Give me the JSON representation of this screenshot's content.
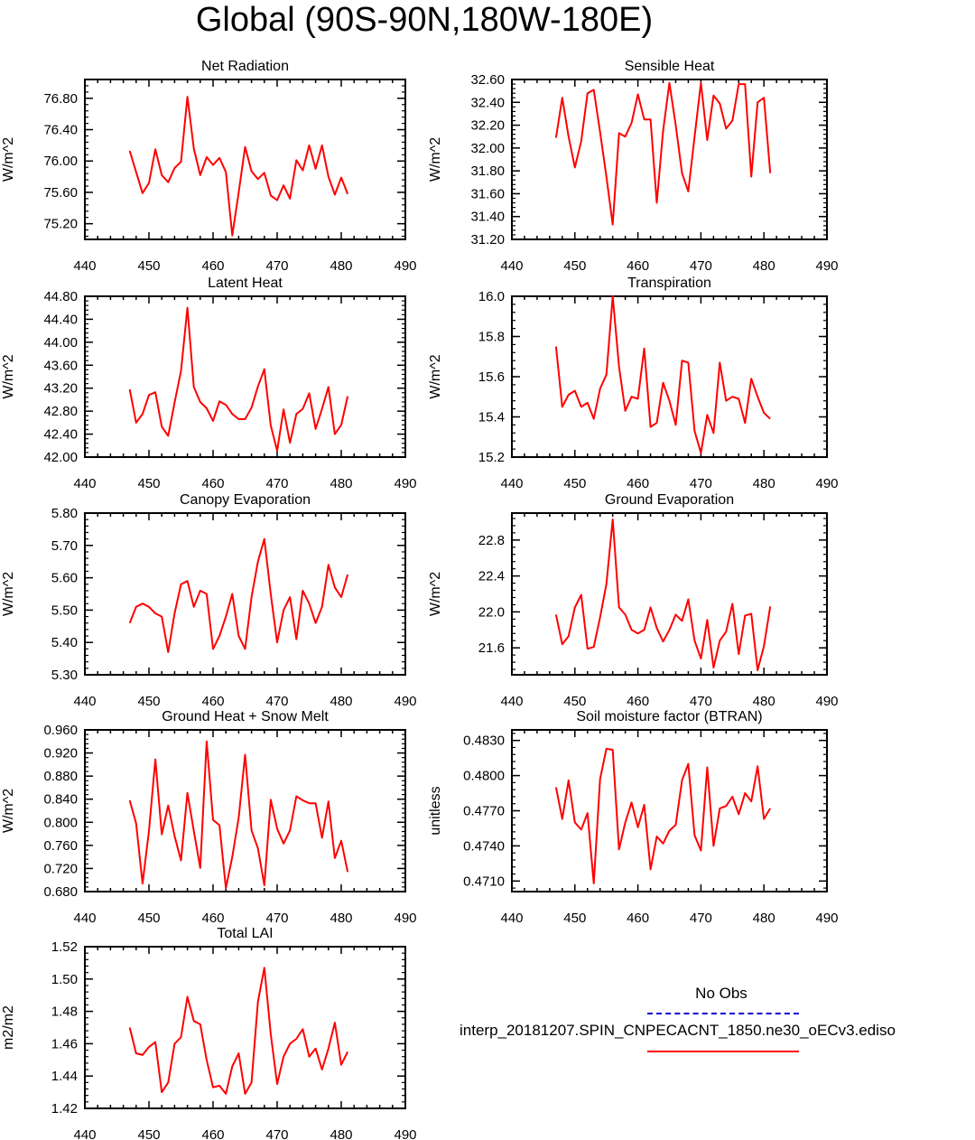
{
  "title": "Global (90S-90N,180W-180E)",
  "colors": {
    "model": "#ff0000",
    "obs": "#0000cc",
    "axis": "#000000"
  },
  "legend": {
    "obs_label": "No Obs",
    "model_label": "interp_20181207.SPIN_CNPECACNT_1850.ne30_oECv3.ediso"
  },
  "chart_data": [
    {
      "type": "line",
      "title": "Net Radiation",
      "ylabel": "W/m^2",
      "xlim": [
        440,
        490
      ],
      "xticks": [
        "440",
        "450",
        "460",
        "470",
        "480",
        "490"
      ],
      "ylim": [
        75.0,
        77.04
      ],
      "yticks": [
        "75.20",
        "75.60",
        "76.00",
        "76.40",
        "76.80"
      ],
      "ytick_values": [
        75.2,
        75.6,
        76.0,
        76.4,
        76.8
      ],
      "minor_step": 0.08,
      "x": [
        447,
        448,
        449,
        450,
        451,
        452,
        453,
        454,
        455,
        456,
        457,
        458,
        459,
        460,
        461,
        462,
        463,
        464,
        465,
        466,
        467,
        468,
        469,
        470,
        471,
        472,
        473,
        474,
        475,
        476,
        477,
        478,
        479,
        480,
        481
      ],
      "values": [
        76.13,
        75.86,
        75.59,
        75.72,
        76.15,
        75.82,
        75.73,
        75.91,
        75.99,
        76.82,
        76.16,
        75.82,
        76.05,
        75.95,
        76.04,
        75.86,
        75.05,
        75.6,
        76.18,
        75.87,
        75.77,
        75.85,
        75.56,
        75.5,
        75.69,
        75.52,
        76.01,
        75.88,
        76.2,
        75.9,
        76.2,
        75.8,
        75.57,
        75.79,
        75.58
      ]
    },
    {
      "type": "line",
      "title": "Sensible Heat",
      "ylabel": "W/m^2",
      "xlim": [
        440,
        490
      ],
      "xticks": [
        "440",
        "450",
        "460",
        "470",
        "480",
        "490"
      ],
      "ylim": [
        31.2,
        32.6
      ],
      "yticks": [
        "31.20",
        "31.40",
        "31.60",
        "31.80",
        "32.00",
        "32.20",
        "32.40",
        "32.60"
      ],
      "ytick_values": [
        31.2,
        31.4,
        31.6,
        31.8,
        32.0,
        32.2,
        32.4,
        32.6
      ],
      "minor_step": 0.04,
      "x": [
        447,
        448,
        449,
        450,
        451,
        452,
        453,
        454,
        455,
        456,
        457,
        458,
        459,
        460,
        461,
        462,
        463,
        464,
        465,
        466,
        467,
        468,
        469,
        470,
        471,
        472,
        473,
        474,
        475,
        476,
        477,
        478,
        479,
        480,
        481
      ],
      "values": [
        32.09,
        32.44,
        32.1,
        31.83,
        32.06,
        32.48,
        32.51,
        32.14,
        31.75,
        31.33,
        32.13,
        32.1,
        32.22,
        32.47,
        32.25,
        32.25,
        31.52,
        32.15,
        32.57,
        32.2,
        31.78,
        31.62,
        32.1,
        32.57,
        32.07,
        32.46,
        32.39,
        32.17,
        32.24,
        32.56,
        32.56,
        31.75,
        32.4,
        32.44,
        31.78
      ]
    },
    {
      "type": "line",
      "title": "Latent Heat",
      "ylabel": "W/m^2",
      "xlim": [
        440,
        490
      ],
      "xticks": [
        "440",
        "450",
        "460",
        "470",
        "480",
        "490"
      ],
      "ylim": [
        42.0,
        44.8
      ],
      "yticks": [
        "42.00",
        "42.40",
        "42.80",
        "43.20",
        "43.60",
        "44.00",
        "44.40",
        "44.80"
      ],
      "ytick_values": [
        42.0,
        42.4,
        42.8,
        43.2,
        43.6,
        44.0,
        44.4,
        44.8
      ],
      "minor_step": 0.08,
      "x": [
        447,
        448,
        449,
        450,
        451,
        452,
        453,
        454,
        455,
        456,
        457,
        458,
        459,
        460,
        461,
        462,
        463,
        464,
        465,
        466,
        467,
        468,
        469,
        470,
        471,
        472,
        473,
        474,
        475,
        476,
        477,
        478,
        479,
        480,
        481
      ],
      "values": [
        43.18,
        42.6,
        42.75,
        43.08,
        43.13,
        42.53,
        42.37,
        42.95,
        43.5,
        44.6,
        43.22,
        42.96,
        42.85,
        42.63,
        42.97,
        42.91,
        42.75,
        42.66,
        42.66,
        42.86,
        43.23,
        43.53,
        42.55,
        42.11,
        42.83,
        42.25,
        42.75,
        42.84,
        43.11,
        42.49,
        42.84,
        43.22,
        42.4,
        42.56,
        43.06
      ]
    },
    {
      "type": "line",
      "title": "Transpiration",
      "ylabel": "W/m^2",
      "xlim": [
        440,
        490
      ],
      "xticks": [
        "440",
        "450",
        "460",
        "470",
        "480",
        "490"
      ],
      "ylim": [
        15.2,
        16.0
      ],
      "yticks": [
        "15.2",
        "15.4",
        "15.6",
        "15.8",
        "16.0"
      ],
      "ytick_values": [
        15.2,
        15.4,
        15.6,
        15.8,
        16.0
      ],
      "minor_step": 0.04,
      "x": [
        447,
        448,
        449,
        450,
        451,
        452,
        453,
        454,
        455,
        456,
        457,
        458,
        459,
        460,
        461,
        462,
        463,
        464,
        465,
        466,
        467,
        468,
        469,
        470,
        471,
        472,
        473,
        474,
        475,
        476,
        477,
        478,
        479,
        480,
        481
      ],
      "values": [
        15.75,
        15.45,
        15.51,
        15.53,
        15.45,
        15.47,
        15.39,
        15.54,
        15.61,
        16.0,
        15.65,
        15.43,
        15.5,
        15.49,
        15.74,
        15.35,
        15.37,
        15.57,
        15.48,
        15.36,
        15.68,
        15.67,
        15.33,
        15.22,
        15.41,
        15.32,
        15.67,
        15.48,
        15.5,
        15.49,
        15.37,
        15.59,
        15.5,
        15.42,
        15.39
      ]
    },
    {
      "type": "line",
      "title": "Canopy Evaporation",
      "ylabel": "W/m^2",
      "xlim": [
        440,
        490
      ],
      "xticks": [
        "440",
        "450",
        "460",
        "470",
        "480",
        "490"
      ],
      "ylim": [
        5.3,
        5.8
      ],
      "yticks": [
        "5.30",
        "5.40",
        "5.50",
        "5.60",
        "5.70",
        "5.80"
      ],
      "ytick_values": [
        5.3,
        5.4,
        5.5,
        5.6,
        5.7,
        5.8
      ],
      "minor_step": 0.02,
      "x": [
        447,
        448,
        449,
        450,
        451,
        452,
        453,
        454,
        455,
        456,
        457,
        458,
        459,
        460,
        461,
        462,
        463,
        464,
        465,
        466,
        467,
        468,
        469,
        470,
        471,
        472,
        473,
        474,
        475,
        476,
        477,
        478,
        479,
        480,
        481
      ],
      "values": [
        5.46,
        5.51,
        5.52,
        5.51,
        5.49,
        5.48,
        5.37,
        5.49,
        5.58,
        5.59,
        5.51,
        5.56,
        5.55,
        5.38,
        5.42,
        5.48,
        5.55,
        5.42,
        5.38,
        5.54,
        5.65,
        5.72,
        5.55,
        5.4,
        5.5,
        5.54,
        5.41,
        5.56,
        5.52,
        5.46,
        5.51,
        5.64,
        5.57,
        5.54,
        5.61
      ]
    },
    {
      "type": "line",
      "title": "Ground Evaporation",
      "ylabel": "W/m^2",
      "xlim": [
        440,
        490
      ],
      "xticks": [
        "440",
        "450",
        "460",
        "470",
        "480",
        "490"
      ],
      "ylim": [
        21.3,
        23.1
      ],
      "yticks": [
        "21.6",
        "22.0",
        "22.4",
        "22.8"
      ],
      "ytick_values": [
        21.6,
        22.0,
        22.4,
        22.8
      ],
      "minor_step": 0.08,
      "x": [
        447,
        448,
        449,
        450,
        451,
        452,
        453,
        454,
        455,
        456,
        457,
        458,
        459,
        460,
        461,
        462,
        463,
        464,
        465,
        466,
        467,
        468,
        469,
        470,
        471,
        472,
        473,
        474,
        475,
        476,
        477,
        478,
        479,
        480,
        481
      ],
      "values": [
        21.97,
        21.64,
        21.73,
        22.05,
        22.19,
        21.59,
        21.61,
        21.94,
        22.31,
        23.03,
        22.05,
        21.97,
        21.8,
        21.76,
        21.8,
        22.05,
        21.82,
        21.67,
        21.8,
        21.97,
        21.9,
        22.14,
        21.68,
        21.48,
        21.91,
        21.38,
        21.68,
        21.78,
        22.09,
        21.53,
        21.96,
        21.98,
        21.35,
        21.62,
        22.06
      ]
    },
    {
      "type": "line",
      "title": "Ground Heat + Snow Melt",
      "ylabel": "W/m^2",
      "xlim": [
        440,
        490
      ],
      "xticks": [
        "440",
        "450",
        "460",
        "470",
        "480",
        "490"
      ],
      "ylim": [
        0.68,
        0.96
      ],
      "yticks": [
        "0.680",
        "0.720",
        "0.760",
        "0.800",
        "0.840",
        "0.880",
        "0.920",
        "0.960"
      ],
      "ytick_values": [
        0.68,
        0.72,
        0.76,
        0.8,
        0.84,
        0.88,
        0.92,
        0.96
      ],
      "minor_step": 0.008,
      "x": [
        447,
        448,
        449,
        450,
        451,
        452,
        453,
        454,
        455,
        456,
        457,
        458,
        459,
        460,
        461,
        462,
        463,
        464,
        465,
        466,
        467,
        468,
        469,
        470,
        471,
        472,
        473,
        474,
        475,
        476,
        477,
        478,
        479,
        480,
        481
      ],
      "values": [
        0.838,
        0.798,
        0.694,
        0.785,
        0.909,
        0.779,
        0.829,
        0.776,
        0.734,
        0.851,
        0.785,
        0.721,
        0.94,
        0.804,
        0.795,
        0.686,
        0.74,
        0.808,
        0.917,
        0.786,
        0.755,
        0.691,
        0.839,
        0.789,
        0.763,
        0.786,
        0.845,
        0.838,
        0.833,
        0.833,
        0.773,
        0.836,
        0.738,
        0.768,
        0.714
      ]
    },
    {
      "type": "line",
      "title": "Soil moisture factor (BTRAN)",
      "ylabel": "unitless",
      "xlim": [
        440,
        490
      ],
      "xticks": [
        "440",
        "450",
        "460",
        "470",
        "480",
        "490"
      ],
      "ylim": [
        0.4701,
        0.4839
      ],
      "yticks": [
        "0.4710",
        "0.4740",
        "0.4770",
        "0.4800",
        "0.4830"
      ],
      "ytick_values": [
        0.471,
        0.474,
        0.477,
        0.48,
        0.483
      ],
      "minor_step": 0.0006,
      "x": [
        447,
        448,
        449,
        450,
        451,
        452,
        453,
        454,
        455,
        456,
        457,
        458,
        459,
        460,
        461,
        462,
        463,
        464,
        465,
        466,
        467,
        468,
        469,
        470,
        471,
        472,
        473,
        474,
        475,
        476,
        477,
        478,
        479,
        480,
        481
      ],
      "values": [
        0.479,
        0.4763,
        0.4796,
        0.476,
        0.4754,
        0.4768,
        0.4708,
        0.4797,
        0.4823,
        0.4822,
        0.4737,
        0.476,
        0.4777,
        0.4756,
        0.4775,
        0.472,
        0.4748,
        0.4742,
        0.4753,
        0.4758,
        0.4796,
        0.481,
        0.4749,
        0.4736,
        0.4807,
        0.474,
        0.4772,
        0.4774,
        0.4782,
        0.4767,
        0.4785,
        0.4778,
        0.4808,
        0.4763,
        0.4772
      ]
    },
    {
      "type": "line",
      "title": "Total LAI",
      "ylabel": "m2/m2",
      "xlim": [
        440,
        490
      ],
      "xticks": [
        "440",
        "450",
        "460",
        "470",
        "480",
        "490"
      ],
      "ylim": [
        1.42,
        1.52
      ],
      "yticks": [
        "1.42",
        "1.44",
        "1.46",
        "1.48",
        "1.50",
        "1.52"
      ],
      "ytick_values": [
        1.42,
        1.44,
        1.46,
        1.48,
        1.5,
        1.52
      ],
      "minor_step": 0.004,
      "x": [
        447,
        448,
        449,
        450,
        451,
        452,
        453,
        454,
        455,
        456,
        457,
        458,
        459,
        460,
        461,
        462,
        463,
        464,
        465,
        466,
        467,
        468,
        469,
        470,
        471,
        472,
        473,
        474,
        475,
        476,
        477,
        478,
        479,
        480,
        481
      ],
      "values": [
        1.47,
        1.454,
        1.453,
        1.458,
        1.461,
        1.43,
        1.436,
        1.46,
        1.464,
        1.489,
        1.474,
        1.472,
        1.45,
        1.433,
        1.434,
        1.429,
        1.446,
        1.454,
        1.429,
        1.436,
        1.486,
        1.507,
        1.466,
        1.435,
        1.452,
        1.46,
        1.463,
        1.469,
        1.452,
        1.457,
        1.444,
        1.457,
        1.473,
        1.447,
        1.455
      ]
    }
  ]
}
